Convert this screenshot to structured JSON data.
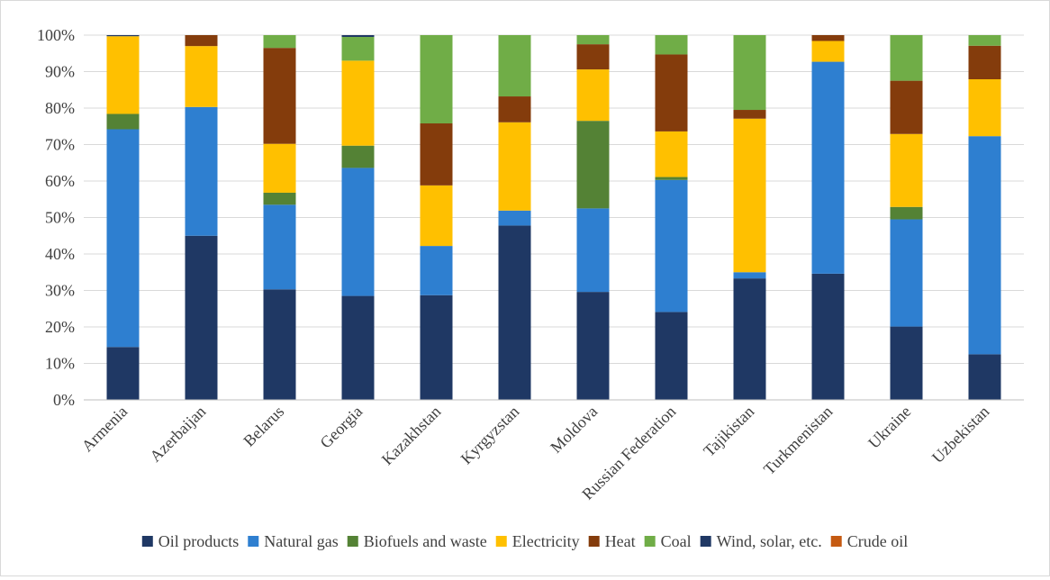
{
  "chart_data": {
    "type": "bar",
    "stacked": true,
    "normalized": true,
    "title": "",
    "xlabel": "",
    "ylabel": "",
    "ylim": [
      0,
      100
    ],
    "ytick_labels": [
      "0%",
      "10%",
      "20%",
      "30%",
      "40%",
      "50%",
      "60%",
      "70%",
      "80%",
      "90%",
      "100%"
    ],
    "grid": "horizontal",
    "legend_position": "bottom",
    "categories": [
      "Armenia",
      "Azerbaijan",
      "Belarus",
      "Georgia",
      "Kazakhstan",
      "Kyrgyzstan",
      "Moldova",
      "Russian Federation",
      "Tajikistan",
      "Turkmenistan",
      "Ukraine",
      "Uzbekistan"
    ],
    "series": [
      {
        "name": "Oil products",
        "color": "#1f3864",
        "values": [
          14.5,
          45.0,
          30.3,
          28.5,
          28.7,
          47.8,
          29.6,
          24.1,
          33.3,
          34.6,
          20.1,
          12.5
        ]
      },
      {
        "name": "Natural gas",
        "color": "#2e7fd0",
        "values": [
          59.7,
          35.3,
          23.2,
          35.1,
          13.5,
          4.1,
          22.9,
          36.2,
          1.7,
          58.1,
          29.4,
          59.8
        ]
      },
      {
        "name": "Biofuels and waste",
        "color": "#548235",
        "values": [
          4.2,
          0,
          3.3,
          6.1,
          0,
          0,
          24.0,
          0.8,
          0,
          0,
          3.4,
          0
        ]
      },
      {
        "name": "Electricity",
        "color": "#ffc000",
        "values": [
          21.3,
          16.7,
          13.4,
          23.3,
          16.6,
          24.2,
          14.1,
          12.5,
          42.1,
          5.7,
          20.0,
          15.6
        ]
      },
      {
        "name": "Heat",
        "color": "#843c0c",
        "values": [
          0,
          3.0,
          26.3,
          0,
          17.0,
          7.1,
          6.9,
          21.1,
          2.4,
          1.6,
          14.6,
          9.2
        ]
      },
      {
        "name": "Coal",
        "color": "#70ad47",
        "values": [
          0,
          0,
          3.5,
          6.5,
          24.2,
          16.8,
          2.5,
          5.3,
          20.5,
          0,
          12.5,
          2.9
        ]
      },
      {
        "name": "Wind, solar, etc.",
        "color": "#203864",
        "values": [
          0.3,
          0,
          0,
          0.5,
          0,
          0,
          0,
          0,
          0,
          0,
          0,
          0
        ]
      },
      {
        "name": "Crude oil",
        "color": "#c55a11",
        "values": [
          0,
          0,
          0,
          0,
          0,
          0,
          0,
          0,
          0,
          0,
          0,
          0
        ]
      }
    ]
  }
}
